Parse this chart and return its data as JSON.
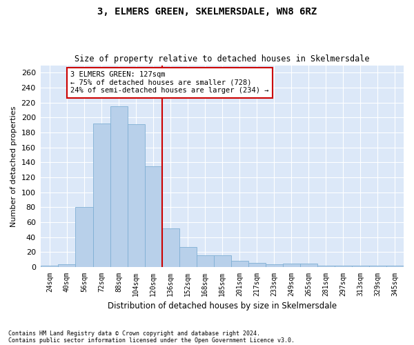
{
  "title": "3, ELMERS GREEN, SKELMERSDALE, WN8 6RZ",
  "subtitle": "Size of property relative to detached houses in Skelmersdale",
  "xlabel": "Distribution of detached houses by size in Skelmersdale",
  "ylabel": "Number of detached properties",
  "footnote1": "Contains HM Land Registry data © Crown copyright and database right 2024.",
  "footnote2": "Contains public sector information licensed under the Open Government Licence v3.0.",
  "categories": [
    "24sqm",
    "40sqm",
    "56sqm",
    "72sqm",
    "88sqm",
    "104sqm",
    "120sqm",
    "136sqm",
    "152sqm",
    "168sqm",
    "185sqm",
    "201sqm",
    "217sqm",
    "233sqm",
    "249sqm",
    "265sqm",
    "281sqm",
    "297sqm",
    "313sqm",
    "329sqm",
    "345sqm"
  ],
  "values": [
    2,
    4,
    80,
    192,
    215,
    191,
    135,
    52,
    27,
    16,
    16,
    8,
    6,
    4,
    5,
    5,
    2,
    2,
    2,
    2,
    2
  ],
  "bar_color": "#b8d0ea",
  "bar_edge_color": "#7fafd4",
  "bg_color": "#dce8f8",
  "grid_color": "#ffffff",
  "annotation_text": "3 ELMERS GREEN: 127sqm\n← 75% of detached houses are smaller (728)\n24% of semi-detached houses are larger (234) →",
  "annotation_box_color": "#ffffff",
  "annotation_box_edge": "#cc0000",
  "vline_color": "#cc0000",
  "ylim": [
    0,
    270
  ],
  "yticks": [
    0,
    20,
    40,
    60,
    80,
    100,
    120,
    140,
    160,
    180,
    200,
    220,
    240,
    260
  ],
  "fig_bg_color": "#ffffff"
}
